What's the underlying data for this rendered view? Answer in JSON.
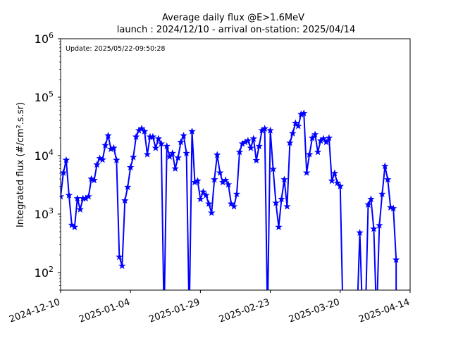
{
  "chart_data": {
    "type": "line",
    "title_line1": "Average daily flux @E>1.6MeV",
    "title_line2": "launch : 2024/12/10 - arrival on-station: 2025/04/14",
    "annotation": "Update: 2025/05/22-09:50:28",
    "ylabel": "Integrated flux (#/cm².s.sr)",
    "yscale": "log",
    "ylim": [
      50,
      1000000
    ],
    "xlim": [
      "2024-12-10",
      "2025-04-14"
    ],
    "xticks": [
      "2024-12-10",
      "2025-01-04",
      "2025-01-29",
      "2025-02-23",
      "2025-03-20",
      "2025-04-14"
    ],
    "yticks": [
      {
        "base": "10",
        "exp": "2"
      },
      {
        "base": "10",
        "exp": "3"
      },
      {
        "base": "10",
        "exp": "4"
      },
      {
        "base": "10",
        "exp": "5"
      },
      {
        "base": "10",
        "exp": "6"
      }
    ],
    "yticks_values": [
      100,
      1000,
      10000,
      100000,
      1000000
    ],
    "color": "#0000ff",
    "marker": "star",
    "start_date": "2024-12-10",
    "series": [
      {
        "values": [
          2000,
          5100,
          8400,
          2100,
          650,
          600,
          1850,
          1200,
          1850,
          1850,
          2000,
          4000,
          3800,
          7000,
          9000,
          8500,
          15000,
          22000,
          13000,
          13500,
          8400,
          185,
          130,
          1700,
          2900,
          6300,
          9400,
          21000,
          27000,
          29000,
          26000,
          10500,
          21000,
          21000,
          13500,
          19500,
          16000,
          null,
          14500,
          9600,
          11000,
          6000,
          9200,
          17000,
          22000,
          11000,
          null,
          26000,
          3500,
          3700,
          1800,
          2400,
          2100,
          1500,
          1050,
          3900,
          10300,
          5100,
          3500,
          3800,
          3200,
          1500,
          1350,
          2200,
          11500,
          16000,
          17000,
          18000,
          13500,
          19500,
          8300,
          14500,
          27000,
          29000,
          null,
          27000,
          5900,
          1550,
          600,
          1800,
          3900,
          1350,
          16500,
          24000,
          36000,
          32000,
          51000,
          53000,
          5100,
          10500,
          20000,
          23000,
          11500,
          18000,
          19500,
          17000,
          20000,
          3700,
          5000,
          3400,
          3000,
          null,
          null,
          null,
          null,
          null,
          null,
          480,
          null,
          null,
          1450,
          1800,
          560,
          null,
          640,
          2200,
          6600,
          3900,
          1300,
          1250,
          165
        ]
      }
    ]
  }
}
